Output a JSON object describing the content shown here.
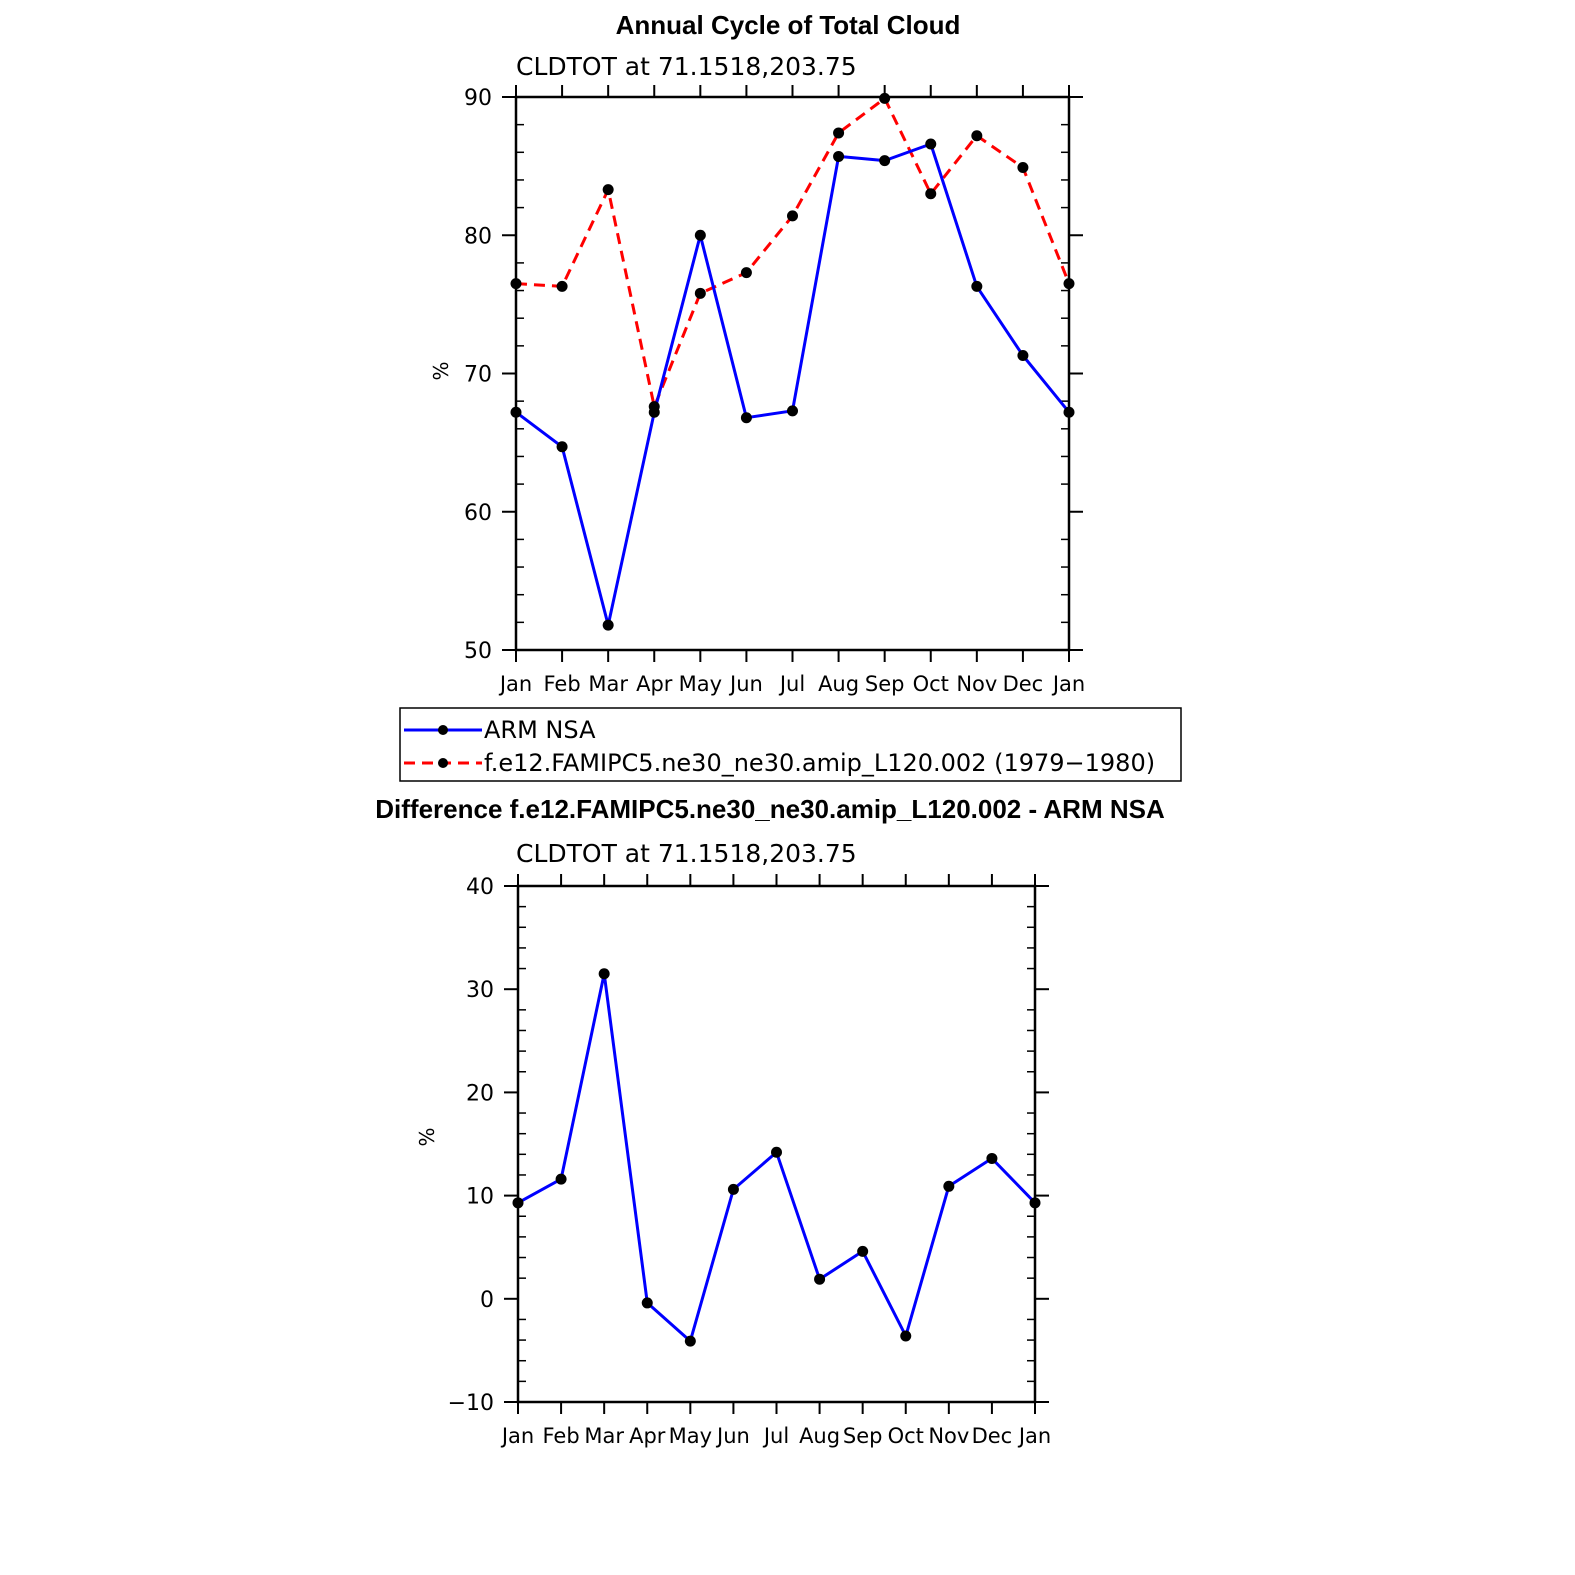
{
  "chart_data": [
    {
      "type": "line",
      "title": "Annual Cycle of Total Cloud",
      "subtitle": "CLDTOT  at  71.1518,203.75",
      "xlabel": "",
      "ylabel": "%",
      "categories": [
        "Jan",
        "Feb",
        "Mar",
        "Apr",
        "May",
        "Jun",
        "Jul",
        "Aug",
        "Sep",
        "Oct",
        "Nov",
        "Dec",
        "Jan"
      ],
      "ylim": [
        50,
        90
      ],
      "yticks": [
        "50",
        "60",
        "70",
        "80",
        "90"
      ],
      "series": [
        {
          "name": "ARM  NSA",
          "color": "#0000ff",
          "dash": "solid",
          "values": [
            67.2,
            64.7,
            51.8,
            67.2,
            80.0,
            66.8,
            67.3,
            85.7,
            85.4,
            86.6,
            76.3,
            71.3,
            67.2
          ]
        },
        {
          "name": "f.e12.FAMIPC5.ne30_ne30.amip_L120.002  (1979−1980)",
          "color": "#ff0000",
          "dash": "dashed",
          "values": [
            76.5,
            76.3,
            83.3,
            67.6,
            75.8,
            77.3,
            81.4,
            87.4,
            89.9,
            83.0,
            87.2,
            84.9,
            76.5
          ]
        }
      ]
    },
    {
      "type": "line",
      "title": "Difference f.e12.FAMIPC5.ne30_ne30.amip_L120.002 - ARM NSA",
      "subtitle": "CLDTOT  at  71.1518,203.75",
      "xlabel": "",
      "ylabel": "%",
      "categories": [
        "Jan",
        "Feb",
        "Mar",
        "Apr",
        "May",
        "Jun",
        "Jul",
        "Aug",
        "Sep",
        "Oct",
        "Nov",
        "Dec",
        "Jan"
      ],
      "ylim": [
        -10,
        40
      ],
      "yticks": [
        "−10",
        "0",
        "10",
        "20",
        "30",
        "40"
      ],
      "series": [
        {
          "name": "Difference",
          "color": "#0000ff",
          "dash": "solid",
          "values": [
            9.3,
            11.6,
            31.5,
            -0.4,
            -4.1,
            10.6,
            14.2,
            1.9,
            4.6,
            -3.6,
            10.9,
            13.6,
            9.3
          ]
        }
      ]
    }
  ]
}
